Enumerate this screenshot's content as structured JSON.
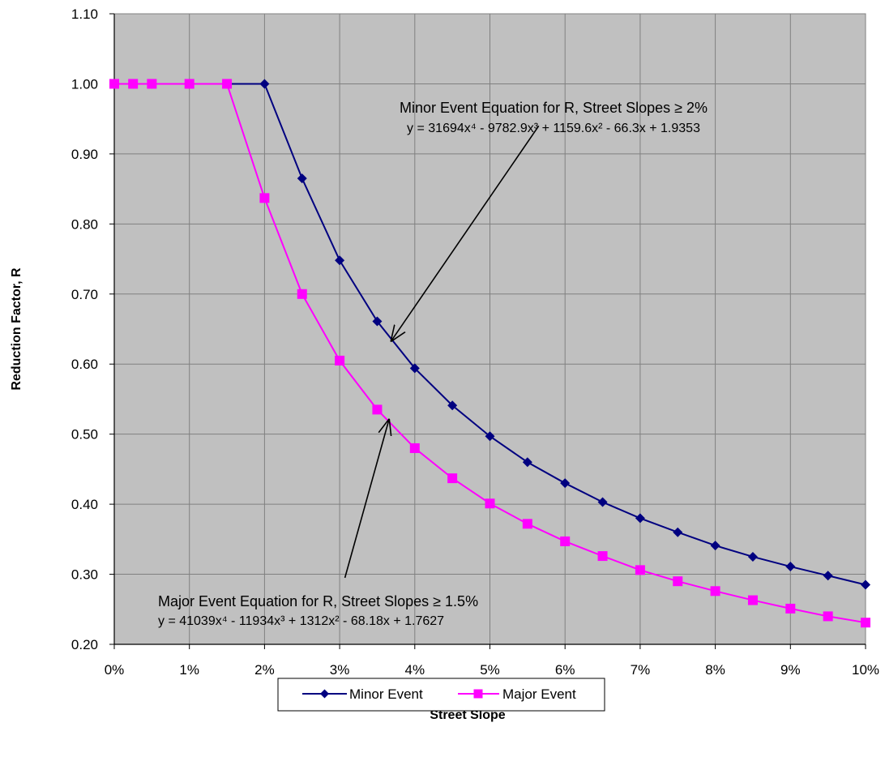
{
  "chart_data": {
    "type": "line",
    "title": "",
    "xlabel": "Street Slope",
    "ylabel": "Reduction Factor, R",
    "xlim": [
      0,
      0.1
    ],
    "ylim": [
      0.2,
      1.1
    ],
    "grid": true,
    "x_ticks": [
      0,
      0.01,
      0.02,
      0.03,
      0.04,
      0.05,
      0.06,
      0.07,
      0.08,
      0.09,
      0.1
    ],
    "x_tick_labels": [
      "0%",
      "1%",
      "2%",
      "3%",
      "4%",
      "5%",
      "6%",
      "7%",
      "8%",
      "9%",
      "10%"
    ],
    "y_ticks": [
      0.2,
      0.3,
      0.4,
      0.5,
      0.6,
      0.7,
      0.8,
      0.9,
      1.0,
      1.1
    ],
    "y_tick_labels": [
      "0.20",
      "0.30",
      "0.40",
      "0.50",
      "0.60",
      "0.70",
      "0.80",
      "0.90",
      "1.00",
      "1.10"
    ],
    "legend_position": "bottom",
    "plot_background": "#c0c0c0",
    "series": [
      {
        "name": "Minor Event",
        "color": "#000080",
        "marker": "diamond",
        "x": [
          0,
          0.0025,
          0.005,
          0.01,
          0.015,
          0.02,
          0.025,
          0.03,
          0.035,
          0.04,
          0.045,
          0.05,
          0.055,
          0.06,
          0.065,
          0.07,
          0.075,
          0.08,
          0.085,
          0.09,
          0.095,
          0.1
        ],
        "values": [
          1.0,
          1.0,
          1.0,
          1.0,
          1.0,
          1.0,
          0.865,
          0.748,
          0.661,
          0.594,
          0.541,
          0.497,
          0.46,
          0.43,
          0.403,
          0.38,
          0.36,
          0.341,
          0.325,
          0.311,
          0.298,
          0.285
        ]
      },
      {
        "name": "Major Event",
        "color": "#ff00ff",
        "marker": "square",
        "x": [
          0,
          0.0025,
          0.005,
          0.01,
          0.015,
          0.02,
          0.025,
          0.03,
          0.035,
          0.04,
          0.045,
          0.05,
          0.055,
          0.06,
          0.065,
          0.07,
          0.075,
          0.08,
          0.085,
          0.09,
          0.095,
          0.1
        ],
        "values": [
          1.0,
          1.0,
          1.0,
          1.0,
          1.0,
          0.837,
          0.7,
          0.605,
          0.535,
          0.48,
          0.437,
          0.401,
          0.372,
          0.347,
          0.326,
          0.306,
          0.29,
          0.276,
          0.263,
          0.251,
          0.24,
          0.231
        ]
      }
    ],
    "annotations": [
      {
        "id": "minor",
        "line1": "Minor Event Equation for R, Street Slopes ≥ 2%",
        "line2": "y = 31694x⁴ - 9782.9x³ + 1159.6x² - 66.3x + 1.9353",
        "arrow_from": [
          0.0565,
          0.94
        ],
        "arrow_to": [
          0.0368,
          0.632
        ]
      },
      {
        "id": "major",
        "line1": "Major Event Equation for R, Street Slopes ≥ 1.5%",
        "line2": "y = 41039x⁴ - 11934x³ + 1312x² - 68.18x + 1.7627",
        "arrow_from": [
          0.0307,
          0.295
        ],
        "arrow_to": [
          0.0366,
          0.522
        ]
      }
    ]
  }
}
